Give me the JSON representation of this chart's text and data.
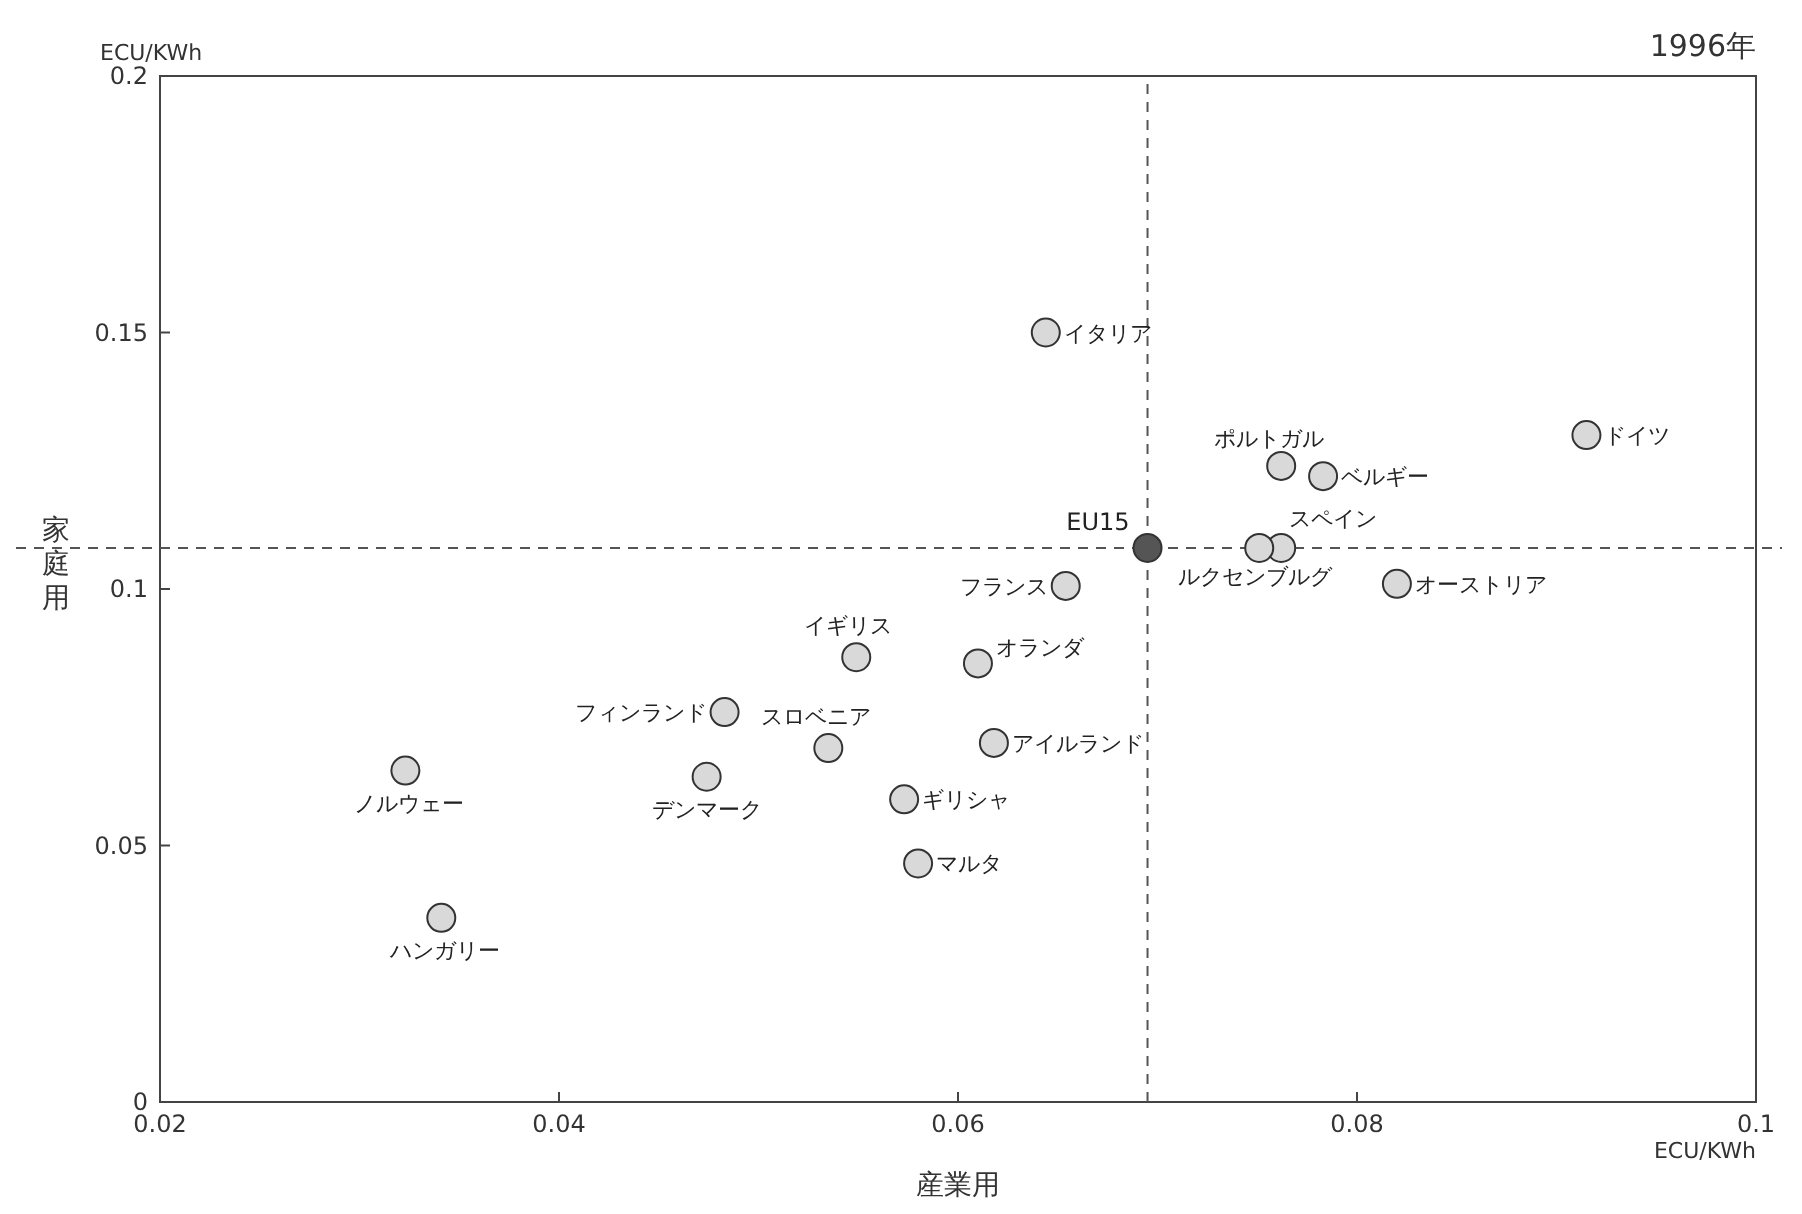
{
  "chart_data": {
    "type": "scatter",
    "title": "1996年",
    "xlabel": "産業用",
    "ylabel": "家庭用",
    "xlim": [
      0.02,
      0.1
    ],
    "xticks": [
      0.02,
      0.04,
      0.06,
      0.08,
      0.1
    ],
    "ylim": [
      0,
      0.2
    ],
    "yticks": [
      0,
      0.05,
      0.1,
      0.15,
      0.2
    ],
    "grid": false,
    "legend": false,
    "marker": "circle",
    "series": [
      {
        "color": "#d9d9d9",
        "x": [
          0.0644,
          0.0762,
          0.0783,
          0.0915,
          0.0762,
          0.0751,
          0.082,
          0.0654,
          0.0549,
          0.061,
          0.0483,
          0.0535,
          0.0618,
          0.0323,
          0.0474,
          0.0573,
          0.058,
          0.0341
        ],
        "values": [
          0.15,
          0.124,
          0.122,
          0.13,
          0.108,
          0.108,
          0.101,
          0.1006,
          0.0867,
          0.0855,
          0.076,
          0.069,
          0.07,
          0.0646,
          0.0634,
          0.059,
          0.0465,
          0.0359
        ]
      },
      {
        "name": "EU15",
        "color": "#555555",
        "x": [
          0.0695
        ],
        "values": [
          0.108
        ]
      }
    ],
    "ref_lines": [
      {
        "axis": "x",
        "value": 0.0695,
        "line_style": "dashed"
      },
      {
        "axis": "y",
        "value": 0.108,
        "line_style": "dashed"
      }
    ],
    "annotations": [
      {
        "text": "イタリア",
        "x": 0.0644,
        "y": 0.15
      },
      {
        "text": "ポルトガル",
        "x": 0.0762,
        "y": 0.124
      },
      {
        "text": "ベルギー",
        "x": 0.0783,
        "y": 0.122
      },
      {
        "text": "ドイツ",
        "x": 0.0915,
        "y": 0.13
      },
      {
        "text": "スペイン",
        "x": 0.0762,
        "y": 0.108
      },
      {
        "text": "ルクセンブルグ",
        "x": 0.0751,
        "y": 0.108
      },
      {
        "text": "オーストリア",
        "x": 0.082,
        "y": 0.101
      },
      {
        "text": "フランス",
        "x": 0.0654,
        "y": 0.1006
      },
      {
        "text": "イギリス",
        "x": 0.0549,
        "y": 0.0867
      },
      {
        "text": "オランダ",
        "x": 0.061,
        "y": 0.0855
      },
      {
        "text": "フィンランド",
        "x": 0.0483,
        "y": 0.076
      },
      {
        "text": "スロベニア",
        "x": 0.0535,
        "y": 0.069
      },
      {
        "text": "アイルランド",
        "x": 0.0618,
        "y": 0.07
      },
      {
        "text": "ノルウェー",
        "x": 0.0323,
        "y": 0.0646
      },
      {
        "text": "デンマーク",
        "x": 0.0474,
        "y": 0.0634
      },
      {
        "text": "ギリシャ",
        "x": 0.0573,
        "y": 0.059
      },
      {
        "text": "マルタ",
        "x": 0.058,
        "y": 0.0465
      },
      {
        "text": "ハンガリー",
        "x": 0.0341,
        "y": 0.0359
      },
      "ECU/KWh",
      "ECU/KWh"
    ]
  }
}
